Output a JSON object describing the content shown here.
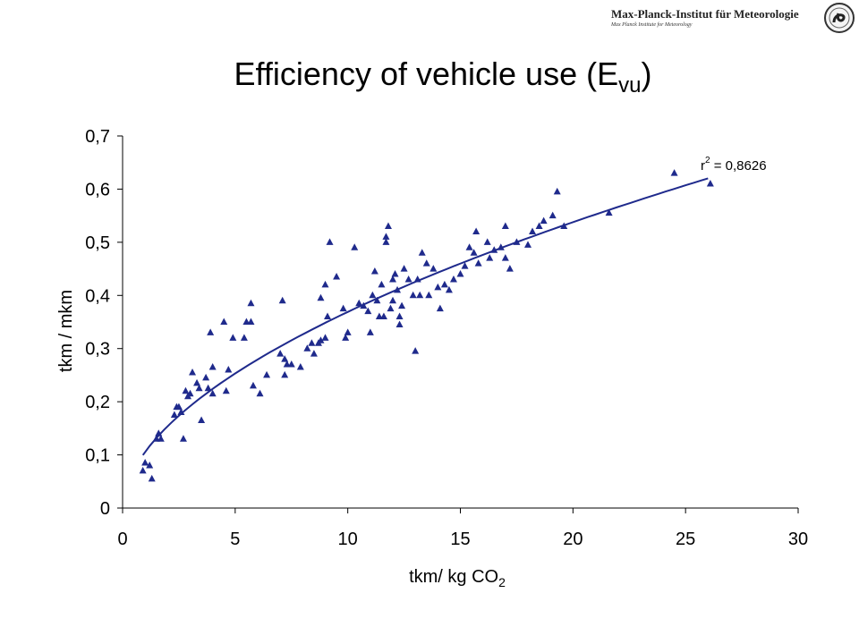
{
  "header": {
    "institute_name": "Max-Planck-Institut für Meteorologie",
    "institute_subline": "Max Planck Institute for Meteorology"
  },
  "slide": {
    "title_main": "Efficiency of vehicle use (E",
    "title_sub": "vu",
    "title_close": ")"
  },
  "chart_data": {
    "type": "scatter",
    "marker": "triangle",
    "color": "#1f2a8c",
    "xlabel_main": "tkm/ kg CO",
    "xlabel_sub": "2",
    "ylabel": "tkm / mkm",
    "xlim": [
      0,
      30
    ],
    "ylim": [
      0,
      0.7
    ],
    "x_ticks": [
      "0",
      "5",
      "10",
      "15",
      "20",
      "25",
      "30"
    ],
    "y_ticks": [
      "0",
      "0,1",
      "0,2",
      "0,3",
      "0,4",
      "0,5",
      "0,6",
      "0,7"
    ],
    "grid": false,
    "trendline": {
      "type": "power",
      "a": 0.1055,
      "b": 0.5437,
      "x_range": [
        0.9,
        26.0
      ]
    },
    "r2_label_r": "r",
    "r2_label_exp": "2",
    "r2_label_value": " = 0,8626",
    "points": [
      [
        0.9,
        0.07
      ],
      [
        1.0,
        0.085
      ],
      [
        1.2,
        0.08
      ],
      [
        1.3,
        0.055
      ],
      [
        1.5,
        0.13
      ],
      [
        1.6,
        0.14
      ],
      [
        1.7,
        0.13
      ],
      [
        2.3,
        0.175
      ],
      [
        2.4,
        0.19
      ],
      [
        2.5,
        0.19
      ],
      [
        2.6,
        0.18
      ],
      [
        2.7,
        0.13
      ],
      [
        2.8,
        0.22
      ],
      [
        2.9,
        0.21
      ],
      [
        3.0,
        0.215
      ],
      [
        3.1,
        0.255
      ],
      [
        3.3,
        0.235
      ],
      [
        3.4,
        0.225
      ],
      [
        3.5,
        0.165
      ],
      [
        3.7,
        0.245
      ],
      [
        3.8,
        0.225
      ],
      [
        3.9,
        0.33
      ],
      [
        4.0,
        0.265
      ],
      [
        4.0,
        0.215
      ],
      [
        4.5,
        0.35
      ],
      [
        4.6,
        0.22
      ],
      [
        4.7,
        0.26
      ],
      [
        4.9,
        0.32
      ],
      [
        5.4,
        0.32
      ],
      [
        5.5,
        0.35
      ],
      [
        5.7,
        0.385
      ],
      [
        5.7,
        0.35
      ],
      [
        5.8,
        0.23
      ],
      [
        6.1,
        0.215
      ],
      [
        6.4,
        0.25
      ],
      [
        7.0,
        0.29
      ],
      [
        7.1,
        0.39
      ],
      [
        7.2,
        0.28
      ],
      [
        7.2,
        0.25
      ],
      [
        7.3,
        0.27
      ],
      [
        7.5,
        0.27
      ],
      [
        7.9,
        0.265
      ],
      [
        8.2,
        0.3
      ],
      [
        8.4,
        0.31
      ],
      [
        8.5,
        0.29
      ],
      [
        8.7,
        0.31
      ],
      [
        8.8,
        0.395
      ],
      [
        8.8,
        0.315
      ],
      [
        9.0,
        0.42
      ],
      [
        9.0,
        0.32
      ],
      [
        9.1,
        0.36
      ],
      [
        9.2,
        0.5
      ],
      [
        9.5,
        0.435
      ],
      [
        9.8,
        0.375
      ],
      [
        9.9,
        0.32
      ],
      [
        10.0,
        0.33
      ],
      [
        10.3,
        0.49
      ],
      [
        10.5,
        0.385
      ],
      [
        10.7,
        0.38
      ],
      [
        10.9,
        0.37
      ],
      [
        11.0,
        0.33
      ],
      [
        11.1,
        0.4
      ],
      [
        11.2,
        0.445
      ],
      [
        11.3,
        0.39
      ],
      [
        11.4,
        0.36
      ],
      [
        11.5,
        0.42
      ],
      [
        11.6,
        0.36
      ],
      [
        11.7,
        0.5
      ],
      [
        11.7,
        0.51
      ],
      [
        11.8,
        0.53
      ],
      [
        11.9,
        0.375
      ],
      [
        12.0,
        0.43
      ],
      [
        12.0,
        0.39
      ],
      [
        12.1,
        0.44
      ],
      [
        12.2,
        0.41
      ],
      [
        12.3,
        0.36
      ],
      [
        12.3,
        0.345
      ],
      [
        12.4,
        0.38
      ],
      [
        12.5,
        0.45
      ],
      [
        12.7,
        0.43
      ],
      [
        12.9,
        0.4
      ],
      [
        13.0,
        0.295
      ],
      [
        13.1,
        0.43
      ],
      [
        13.2,
        0.4
      ],
      [
        13.3,
        0.48
      ],
      [
        13.5,
        0.46
      ],
      [
        13.6,
        0.4
      ],
      [
        13.8,
        0.45
      ],
      [
        14.0,
        0.415
      ],
      [
        14.1,
        0.375
      ],
      [
        14.3,
        0.42
      ],
      [
        14.5,
        0.41
      ],
      [
        14.7,
        0.43
      ],
      [
        15.0,
        0.44
      ],
      [
        15.2,
        0.455
      ],
      [
        15.4,
        0.49
      ],
      [
        15.6,
        0.48
      ],
      [
        15.7,
        0.52
      ],
      [
        15.8,
        0.46
      ],
      [
        16.2,
        0.5
      ],
      [
        16.3,
        0.47
      ],
      [
        16.5,
        0.485
      ],
      [
        16.8,
        0.49
      ],
      [
        17.0,
        0.53
      ],
      [
        17.0,
        0.47
      ],
      [
        17.2,
        0.45
      ],
      [
        17.5,
        0.5
      ],
      [
        18.0,
        0.495
      ],
      [
        18.2,
        0.52
      ],
      [
        18.5,
        0.53
      ],
      [
        18.7,
        0.54
      ],
      [
        19.1,
        0.55
      ],
      [
        19.3,
        0.595
      ],
      [
        19.6,
        0.53
      ],
      [
        21.6,
        0.555
      ],
      [
        24.5,
        0.63
      ],
      [
        26.1,
        0.61
      ]
    ]
  }
}
